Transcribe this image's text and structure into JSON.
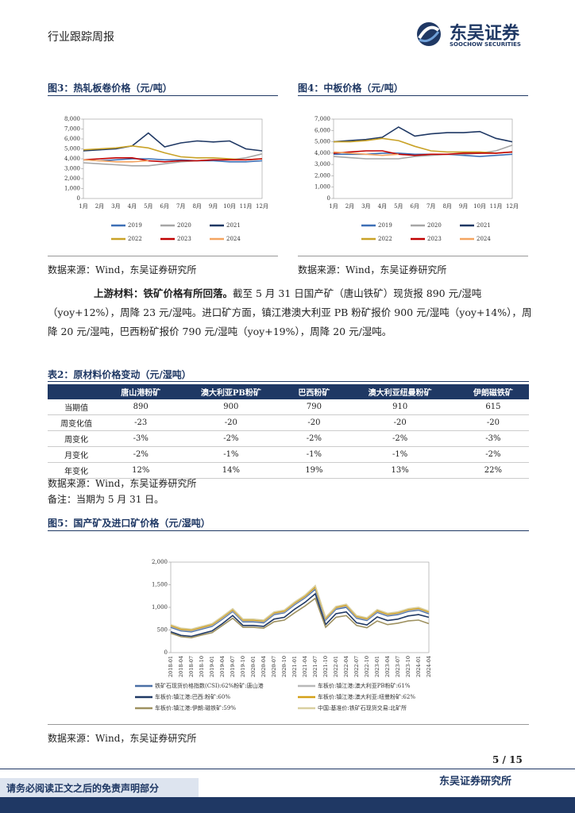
{
  "header": {
    "left": "行业跟踪周报",
    "brand": "东吴证券",
    "brand_en": "SOOCHOW SECURITIES"
  },
  "chart_data": [
    {
      "type": "line",
      "title": "图3：热轧板卷价格（元/吨）",
      "source": "数据来源：Wind，东吴证券研究所",
      "categories": [
        "1月",
        "2月",
        "3月",
        "4月",
        "5月",
        "6月",
        "7月",
        "8月",
        "9月",
        "10月",
        "11月",
        "12月"
      ],
      "ylim": [
        0,
        8000
      ],
      "yticks": [
        0,
        {
          "value": 1000,
          "label": "1,000"
        },
        {
          "value": 2000,
          "label": "2,000"
        },
        {
          "value": 3000,
          "label": "3,000"
        },
        {
          "value": 4000,
          "label": "4,000"
        },
        {
          "value": 5000,
          "label": "5,000"
        },
        {
          "value": 6000,
          "label": "6,000"
        },
        {
          "value": 7000,
          "label": "7,000"
        },
        {
          "value": 8000,
          "label": "8,000"
        }
      ],
      "series": [
        {
          "name": "2019",
          "color": "#3d6fb6",
          "values": [
            3900,
            3800,
            3900,
            4000,
            4000,
            3900,
            3900,
            3800,
            3800,
            3700,
            3700,
            3800
          ]
        },
        {
          "name": "2020",
          "color": "#a6a6a6",
          "values": [
            3600,
            3500,
            3400,
            3300,
            3300,
            3500,
            3700,
            3800,
            3900,
            3900,
            4100,
            4500
          ]
        },
        {
          "name": "2021",
          "color": "#1f3864",
          "values": [
            4800,
            4900,
            5000,
            5300,
            6600,
            5200,
            5600,
            5800,
            5700,
            5800,
            5000,
            4800
          ]
        },
        {
          "name": "2022",
          "color": "#c9a227",
          "values": [
            4900,
            5000,
            5100,
            5300,
            5100,
            4600,
            4200,
            4100,
            4100,
            4000,
            3900,
            4000
          ]
        },
        {
          "name": "2023",
          "color": "#c00000",
          "values": [
            3900,
            4000,
            4100,
            4100,
            3800,
            3700,
            3800,
            3800,
            3900,
            3900,
            3900,
            4000
          ]
        },
        {
          "name": "2024",
          "color": "#f4a460",
          "values": [
            3900,
            3800,
            3700,
            3700,
            3800,
            null,
            null,
            null,
            null,
            null,
            null,
            null
          ]
        }
      ]
    },
    {
      "type": "line",
      "title": "图4：中板价格（元/吨）",
      "source": "数据来源：Wind，东吴证券研究所",
      "categories": [
        "1月",
        "2月",
        "3月",
        "4月",
        "5月",
        "6月",
        "7月",
        "8月",
        "9月",
        "10月",
        "11月",
        "12月"
      ],
      "ylim": [
        0,
        7000
      ],
      "yticks": [
        0,
        {
          "value": 1000,
          "label": "1,000"
        },
        {
          "value": 2000,
          "label": "2,000"
        },
        {
          "value": 3000,
          "label": "3,000"
        },
        {
          "value": 4000,
          "label": "4,000"
        },
        {
          "value": 5000,
          "label": "5,000"
        },
        {
          "value": 6000,
          "label": "6,000"
        },
        {
          "value": 7000,
          "label": "7,000"
        }
      ],
      "series": [
        {
          "name": "2019",
          "color": "#3d6fb6",
          "values": [
            3900,
            3900,
            3900,
            4000,
            4000,
            3900,
            3900,
            3900,
            3800,
            3700,
            3800,
            3900
          ]
        },
        {
          "name": "2020",
          "color": "#a6a6a6",
          "values": [
            3700,
            3600,
            3500,
            3500,
            3500,
            3700,
            3800,
            3900,
            3900,
            4000,
            4200,
            4700
          ]
        },
        {
          "name": "2021",
          "color": "#1f3864",
          "values": [
            5000,
            5100,
            5200,
            5400,
            6300,
            5500,
            5700,
            5800,
            5800,
            5900,
            5300,
            5000
          ]
        },
        {
          "name": "2022",
          "color": "#c9a227",
          "values": [
            5000,
            5000,
            5100,
            5300,
            5100,
            4600,
            4200,
            4100,
            4100,
            4100,
            4000,
            4100
          ]
        },
        {
          "name": "2023",
          "color": "#c00000",
          "values": [
            4000,
            4100,
            4200,
            4200,
            3900,
            3800,
            3900,
            3900,
            4000,
            4000,
            4000,
            4100
          ]
        },
        {
          "name": "2024",
          "color": "#f4a460",
          "values": [
            4100,
            4000,
            3900,
            3800,
            3900,
            null,
            null,
            null,
            null,
            null,
            null,
            null
          ]
        }
      ]
    },
    {
      "type": "line",
      "title": "图5：国产矿及进口矿价格（元/湿吨）",
      "source": "数据来源：Wind，东吴证券研究所",
      "categories": [
        "2018-01",
        "2018-04",
        "2018-07",
        "2018-10",
        "2019-01",
        "2019-04",
        "2019-07",
        "2019-10",
        "2020-01",
        "2020-04",
        "2020-07",
        "2020-10",
        "2021-01",
        "2021-04",
        "2021-07",
        "2021-10",
        "2022-01",
        "2022-04",
        "2022-07",
        "2022-10",
        "2023-01",
        "2023-04",
        "2023-07",
        "2023-10",
        "2024-01",
        "2024-04"
      ],
      "ylim": [
        0,
        2000
      ],
      "yticks": [
        0,
        500,
        {
          "value": 1000,
          "label": "1,000"
        },
        {
          "value": 1500,
          "label": "1,500"
        },
        {
          "value": 2000,
          "label": "2,000"
        }
      ],
      "series": [
        {
          "name": "铁矿石现货价格指数(CSI):62%粉矿:唐山港",
          "color": "#4a6fa5",
          "values": [
            560,
            480,
            460,
            520,
            580,
            740,
            910,
            680,
            680,
            660,
            840,
            880,
            1060,
            1210,
            1400,
            720,
            960,
            1000,
            760,
            710,
            890,
            810,
            840,
            910,
            940,
            860
          ]
        },
        {
          "name": "车板价:镇江港:澳大利亚PB粉矿:61%",
          "color": "#b8b8b8",
          "values": [
            580,
            500,
            480,
            540,
            600,
            760,
            930,
            700,
            700,
            680,
            860,
            900,
            1080,
            1230,
            1430,
            740,
            980,
            1030,
            780,
            730,
            910,
            830,
            860,
            930,
            960,
            880
          ]
        },
        {
          "name": "车板价:镇江港:巴西:粉矿:60%",
          "color": "#1f3864",
          "values": [
            460,
            380,
            360,
            420,
            480,
            640,
            820,
            600,
            600,
            580,
            740,
            780,
            960,
            1110,
            1300,
            620,
            860,
            900,
            660,
            610,
            790,
            710,
            740,
            810,
            840,
            780
          ]
        },
        {
          "name": "车板价:镇江港:澳大利亚:纽曼粉矿:62%",
          "color": "#d4a017",
          "values": [
            600,
            520,
            500,
            560,
            620,
            780,
            950,
            720,
            720,
            700,
            880,
            920,
            1100,
            1250,
            1450,
            760,
            1000,
            1050,
            800,
            750,
            930,
            850,
            880,
            950,
            980,
            900
          ]
        },
        {
          "name": "车板价:镇江港:伊朗:磁铁矿:59%",
          "color": "#9e9160",
          "values": [
            430,
            350,
            330,
            390,
            440,
            600,
            760,
            560,
            560,
            540,
            680,
            720,
            880,
            1030,
            1200,
            560,
            780,
            820,
            600,
            550,
            700,
            620,
            650,
            700,
            720,
            640
          ]
        },
        {
          "name": "中国:基准价:铁矿石现货交易:北矿所",
          "color": "#d9cfa0",
          "values": [
            620,
            540,
            520,
            580,
            640,
            800,
            970,
            740,
            740,
            720,
            900,
            940,
            1120,
            1270,
            1480,
            780,
            1020,
            1070,
            820,
            770,
            950,
            870,
            900,
            970,
            1000,
            920
          ]
        }
      ]
    }
  ],
  "paragraph": {
    "lead": "上游材料：铁矿价格有所回落。",
    "body": "截至 5 月 31 日国产矿（唐山铁矿）现货报 890 元/湿吨（yoy+12%），周降 23 元/湿吨。进口矿方面，镇江港澳大利亚 PB 粉矿报价 900 元/湿吨（yoy+14%），周降 20 元/湿吨，巴西粉矿报价 790 元/湿吨（yoy+19%），周降 20 元/湿吨。"
  },
  "table": {
    "title": "表2：原材料价格变动（元/湿吨）",
    "header": [
      "唐山港粉矿",
      "澳大利亚PB粉矿",
      "巴西粉矿",
      "澳大利亚纽曼粉矿",
      "伊朗磁铁矿"
    ],
    "rows": [
      [
        "当期值",
        "890",
        "900",
        "790",
        "910",
        "615"
      ],
      [
        "周变化值",
        "-23",
        "-20",
        "-20",
        "-20",
        "-20"
      ],
      [
        "周变化",
        "-3%",
        "-2%",
        "-2%",
        "-2%",
        "-3%"
      ],
      [
        "月变化",
        "-2%",
        "-1%",
        "-1%",
        "-1%",
        "-2%"
      ],
      [
        "年变化",
        "12%",
        "14%",
        "19%",
        "13%",
        "22%"
      ]
    ],
    "source": "数据来源：Wind，东吴证券研究所",
    "note": "备注：当期为 5 月 31 日。"
  },
  "footer": {
    "page": "5 / 15",
    "org": "东吴证券研究所",
    "disclaimer": "请务必阅读正文之后的免责声明部分"
  }
}
